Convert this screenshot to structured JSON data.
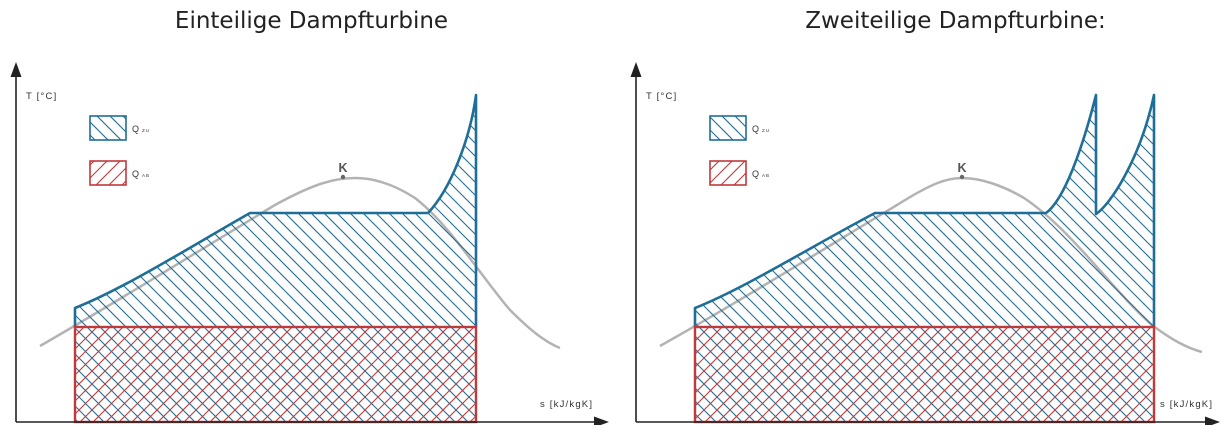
{
  "panels": [
    {
      "title": "Einteilige Dampfturbine",
      "y_axis_label": "T [°C]",
      "x_axis_label": "s [kJ/kgK]",
      "critical_point_label": "K",
      "legend": [
        {
          "label": "Q",
          "sub": "ZU",
          "color": "#1f6e98"
        },
        {
          "label": "Q",
          "sub": "AB",
          "color": "#c0393b"
        }
      ]
    },
    {
      "title": "Zweiteilige Dampfturbine:",
      "y_axis_label": "T [°C]",
      "x_axis_label": "s [kJ/kgK]",
      "critical_point_label": "K",
      "legend": [
        {
          "label": "Q",
          "sub": "ZU",
          "color": "#1f6e98"
        },
        {
          "label": "Q",
          "sub": "AB",
          "color": "#c0393b"
        }
      ]
    }
  ],
  "colors": {
    "heat_in": "#1f6e98",
    "heat_out": "#c0393b",
    "saturation_curve": "#b3b3b3",
    "axis": "#222222"
  }
}
